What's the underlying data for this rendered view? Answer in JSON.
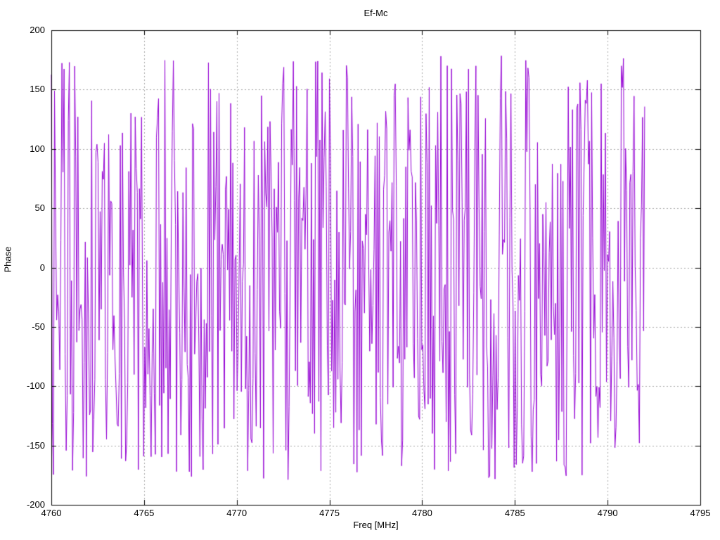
{
  "window": {
    "background": "#ffffff"
  },
  "style": {
    "axis_color": "#000000",
    "grid_color": "#a6a6a6",
    "text_color": "#000000",
    "line_color": "#9400d3"
  },
  "chart_data": {
    "type": "line",
    "title": "Ef-Mc",
    "xlabel": "Freq [MHz]",
    "ylabel": "Phase",
    "xlim": [
      4760,
      4795
    ],
    "ylim": [
      -200,
      200
    ],
    "x_ticks": [
      "4760",
      "4765",
      "4770",
      "4775",
      "4780",
      "4785",
      "4790",
      "4795"
    ],
    "x_tick_values": [
      4760,
      4765,
      4770,
      4775,
      4780,
      4785,
      4790,
      4795
    ],
    "y_ticks": [
      "-200",
      "-150",
      "-100",
      "-50",
      "0",
      "50",
      "100",
      "150",
      "200"
    ],
    "y_tick_values": [
      -200,
      -150,
      -100,
      -50,
      0,
      50,
      100,
      150,
      200
    ],
    "grid": true,
    "grid_style": "dotted",
    "legend": "none",
    "series": [
      {
        "name": "Ef-Mc",
        "color": "#9400d3",
        "x_start": 4760.0,
        "x_end": 4792.0,
        "n_points": 560,
        "y_min": -180,
        "y_max": 180,
        "signal": "wrapped-phase-noise",
        "seed": 987654321
      }
    ]
  }
}
